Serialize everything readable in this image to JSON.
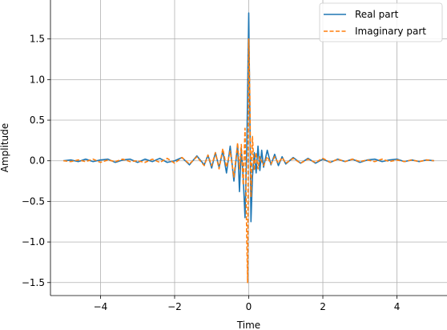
{
  "chart_data": {
    "type": "line",
    "title": "",
    "xlabel": "Time",
    "ylabel": "Amplitude",
    "xlim": [
      -5.35,
      5.35
    ],
    "ylim": [
      -1.66,
      1.98
    ],
    "xticks": [
      -4,
      -2,
      0,
      2,
      4
    ],
    "yticks": [
      -1.5,
      -1.0,
      -0.5,
      0.0,
      0.5,
      1.0,
      1.5
    ],
    "xtick_labels": [
      "−4",
      "−2",
      "0",
      "2",
      "4"
    ],
    "ytick_labels": [
      "−1.5",
      "−1.0",
      "−0.5",
      "0.0",
      "0.5",
      "1.0",
      "1.5"
    ],
    "grid": true,
    "legend_position": "top-right",
    "series": [
      {
        "name": "Real part",
        "color": "#1f77b4",
        "style": "solid",
        "x": [
          -5.0,
          -4.8,
          -4.6,
          -4.4,
          -4.2,
          -4.0,
          -3.8,
          -3.6,
          -3.4,
          -3.2,
          -3.0,
          -2.8,
          -2.6,
          -2.4,
          -2.2,
          -2.0,
          -1.8,
          -1.6,
          -1.4,
          -1.2,
          -1.1,
          -1.0,
          -0.9,
          -0.8,
          -0.7,
          -0.6,
          -0.5,
          -0.4,
          -0.3,
          -0.25,
          -0.2,
          -0.15,
          -0.1,
          -0.05,
          0.0,
          0.03,
          0.06,
          0.1,
          0.15,
          0.2,
          0.25,
          0.3,
          0.35,
          0.4,
          0.5,
          0.6,
          0.7,
          0.8,
          0.9,
          1.0,
          1.2,
          1.4,
          1.6,
          1.8,
          2.0,
          2.2,
          2.4,
          2.6,
          2.8,
          3.0,
          3.2,
          3.4,
          3.6,
          3.8,
          4.0,
          4.2,
          4.4,
          4.6,
          4.8,
          5.0
        ],
        "y": [
          0.0,
          0.01,
          -0.01,
          0.02,
          -0.01,
          0.01,
          0.02,
          -0.02,
          0.01,
          0.02,
          -0.02,
          0.02,
          -0.01,
          0.03,
          -0.02,
          0.0,
          0.04,
          -0.05,
          0.06,
          -0.05,
          0.07,
          -0.09,
          0.1,
          -0.08,
          0.12,
          -0.15,
          0.18,
          -0.25,
          0.2,
          -0.38,
          0.15,
          -0.2,
          -0.7,
          0.2,
          1.82,
          0.6,
          -0.75,
          -0.2,
          0.1,
          -0.15,
          0.18,
          -0.12,
          0.13,
          -0.08,
          0.13,
          -0.05,
          0.08,
          -0.06,
          0.05,
          -0.04,
          0.04,
          -0.03,
          0.03,
          -0.03,
          0.02,
          -0.02,
          0.02,
          -0.01,
          0.02,
          -0.02,
          0.01,
          0.02,
          -0.01,
          0.01,
          0.02,
          -0.01,
          0.01,
          -0.01,
          0.01,
          0.0
        ]
      },
      {
        "name": "Imaginary part",
        "color": "#ff7f0e",
        "style": "dashed",
        "x": [
          -5.0,
          -4.8,
          -4.6,
          -4.4,
          -4.2,
          -4.0,
          -3.8,
          -3.6,
          -3.4,
          -3.2,
          -3.0,
          -2.8,
          -2.6,
          -2.4,
          -2.2,
          -2.0,
          -1.8,
          -1.6,
          -1.4,
          -1.2,
          -1.1,
          -1.0,
          -0.9,
          -0.8,
          -0.7,
          -0.6,
          -0.5,
          -0.4,
          -0.3,
          -0.25,
          -0.2,
          -0.15,
          -0.1,
          -0.06,
          -0.03,
          0.0,
          0.03,
          0.06,
          0.1,
          0.15,
          0.2,
          0.25,
          0.3,
          0.4,
          0.5,
          0.6,
          0.7,
          0.8,
          0.9,
          1.0,
          1.2,
          1.4,
          1.6,
          1.8,
          2.0,
          2.2,
          2.4,
          2.6,
          2.8,
          3.0,
          3.2,
          3.4,
          3.6,
          3.8,
          4.0,
          4.2,
          4.4,
          4.6,
          4.8,
          5.0
        ],
        "y": [
          0.0,
          -0.01,
          0.01,
          -0.01,
          0.02,
          -0.02,
          0.01,
          -0.01,
          0.02,
          -0.01,
          0.0,
          -0.02,
          0.02,
          -0.02,
          0.03,
          -0.03,
          0.04,
          -0.04,
          0.05,
          -0.06,
          0.07,
          -0.06,
          0.1,
          -0.1,
          0.15,
          -0.08,
          0.12,
          -0.2,
          0.22,
          -0.1,
          0.2,
          -0.3,
          0.4,
          -0.75,
          -1.5,
          1.5,
          0.8,
          -0.45,
          0.3,
          -0.12,
          0.1,
          -0.1,
          0.05,
          -0.06,
          0.05,
          -0.04,
          0.05,
          -0.03,
          0.04,
          -0.03,
          0.03,
          -0.03,
          0.02,
          -0.02,
          0.03,
          -0.02,
          0.02,
          -0.01,
          0.02,
          -0.01,
          0.01,
          -0.01,
          0.02,
          -0.01,
          0.01,
          -0.01,
          0.01,
          -0.01,
          0.01,
          0.0
        ]
      }
    ]
  }
}
